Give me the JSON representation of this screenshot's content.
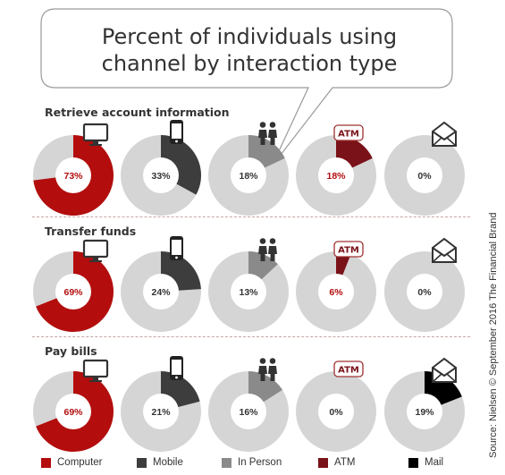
{
  "title": "Percent of individuals using channel by interaction type",
  "title_lines": [
    "Percent of individuals using",
    "channel by interaction type"
  ],
  "source": "Source: Nielsen © September 2016 The Financial Brand",
  "colors": {
    "Computer": "#b30d0d",
    "Mobile": "#3d3d3d",
    "In Person": "#8a8a8a",
    "ATM": "#7a1219",
    "Mail": "#000000",
    "remainder": "#d5d5d5"
  },
  "chart_data": {
    "type": "pie",
    "title": "Percent of individuals using channel by interaction type",
    "categories": [
      "Computer",
      "Mobile",
      "In Person",
      "ATM",
      "Mail"
    ],
    "series": [
      {
        "name": "Retrieve account information",
        "values": [
          73,
          33,
          18,
          18,
          0
        ],
        "labels": [
          "73%",
          "33%",
          "18%",
          "18%",
          "0%"
        ]
      },
      {
        "name": "Transfer funds",
        "values": [
          69,
          24,
          13,
          6,
          0
        ],
        "labels": [
          "69%",
          "24%",
          "13%",
          "6%",
          "0%"
        ]
      },
      {
        "name": "Pay bills",
        "values": [
          69,
          21,
          16,
          0,
          19
        ],
        "labels": [
          "69%",
          "21%",
          "16%",
          "0%",
          "19%"
        ]
      }
    ],
    "legend": [
      "Computer",
      "Mobile",
      "In Person",
      "ATM",
      "Mail"
    ],
    "legend_position": "bottom",
    "icons": [
      "computer-icon",
      "phone-icon",
      "people-icon",
      "atm-icon",
      "envelope-icon"
    ],
    "atm_icon_text": "ATM"
  }
}
